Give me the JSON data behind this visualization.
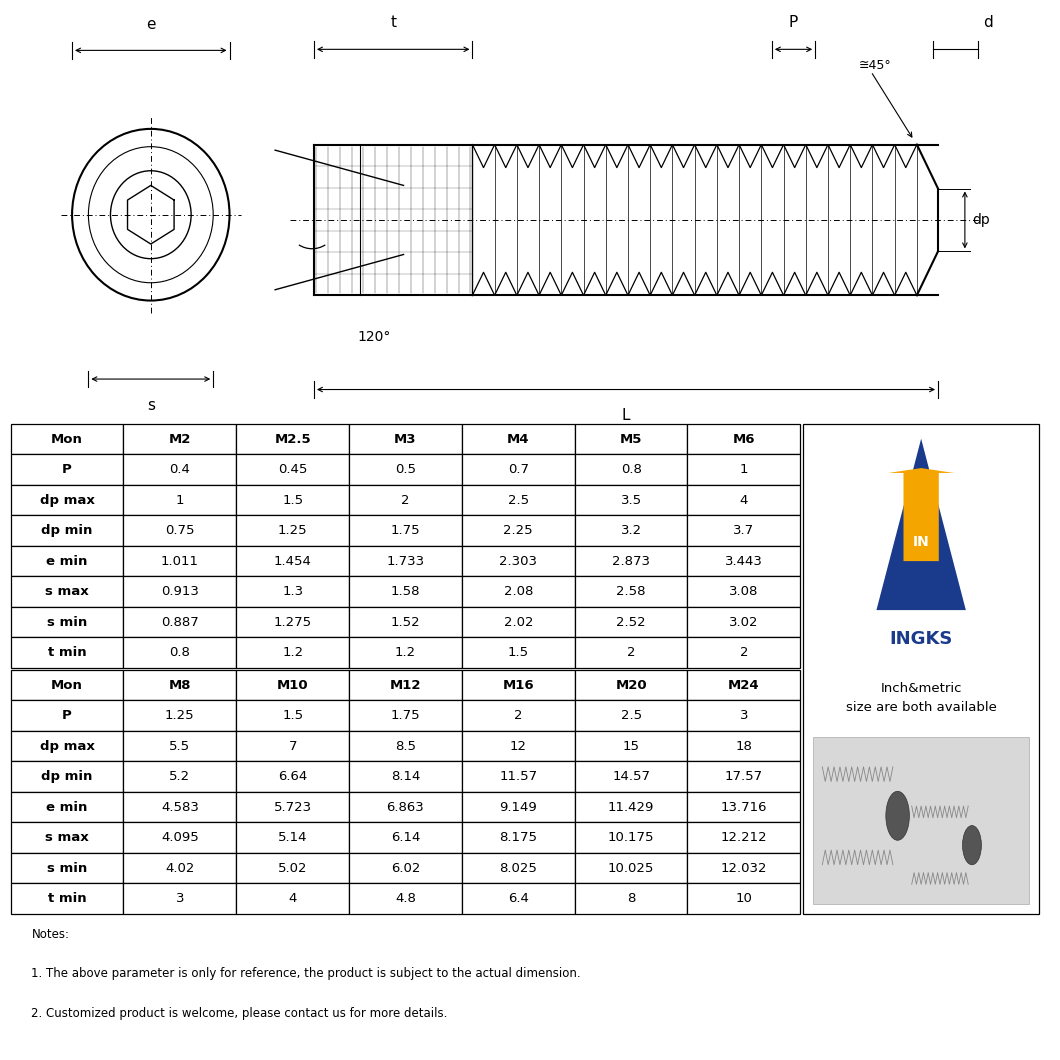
{
  "table1_headers": [
    "Mon",
    "M2",
    "M2.5",
    "M3",
    "M4",
    "M5",
    "M6"
  ],
  "table1_rows": [
    [
      "P",
      "0.4",
      "0.45",
      "0.5",
      "0.7",
      "0.8",
      "1"
    ],
    [
      "dp max",
      "1",
      "1.5",
      "2",
      "2.5",
      "3.5",
      "4"
    ],
    [
      "dp min",
      "0.75",
      "1.25",
      "1.75",
      "2.25",
      "3.2",
      "3.7"
    ],
    [
      "e min",
      "1.011",
      "1.454",
      "1.733",
      "2.303",
      "2.873",
      "3.443"
    ],
    [
      "s max",
      "0.913",
      "1.3",
      "1.58",
      "2.08",
      "2.58",
      "3.08"
    ],
    [
      "s min",
      "0.887",
      "1.275",
      "1.52",
      "2.02",
      "2.52",
      "3.02"
    ],
    [
      "t min",
      "0.8",
      "1.2",
      "1.2",
      "1.5",
      "2",
      "2"
    ]
  ],
  "table2_headers": [
    "Mon",
    "M8",
    "M10",
    "M12",
    "M16",
    "M20",
    "M24"
  ],
  "table2_rows": [
    [
      "P",
      "1.25",
      "1.5",
      "1.75",
      "2",
      "2.5",
      "3"
    ],
    [
      "dp max",
      "5.5",
      "7",
      "8.5",
      "12",
      "15",
      "18"
    ],
    [
      "dp min",
      "5.2",
      "6.64",
      "8.14",
      "11.57",
      "14.57",
      "17.57"
    ],
    [
      "e min",
      "4.583",
      "5.723",
      "6.863",
      "9.149",
      "11.429",
      "13.716"
    ],
    [
      "s max",
      "4.095",
      "5.14",
      "6.14",
      "8.175",
      "10.175",
      "12.212"
    ],
    [
      "s min",
      "4.02",
      "5.02",
      "6.02",
      "8.025",
      "10.025",
      "12.032"
    ],
    [
      "t min",
      "3",
      "4",
      "4.8",
      "6.4",
      "8",
      "10"
    ]
  ],
  "notes": [
    "Notes:",
    "1. The above parameter is only for reference, the product is subject to the actual dimension.",
    "2. Customized product is welcome, please contact us for more details."
  ],
  "brand_name": "INGKS",
  "brand_tagline": "Inch&metric\nsize are both available",
  "bg_color": "#ffffff",
  "line_color": "#000000",
  "diagram_label_e": "e",
  "diagram_label_t": "t",
  "diagram_label_P": "P",
  "diagram_label_d": "d",
  "diagram_label_s": "s",
  "diagram_label_L": "L",
  "diagram_label_dp": "dp",
  "diagram_angle1": "120°",
  "diagram_angle2": "≅45°"
}
